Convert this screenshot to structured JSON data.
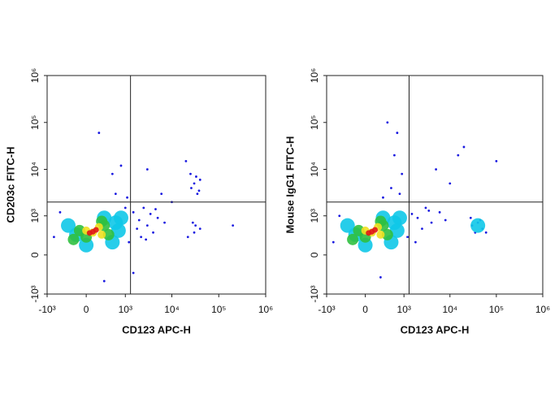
{
  "chart_data": [
    {
      "type": "scatter",
      "xlabel": "CD123 APC-H",
      "ylabel": "CD203c FITC-H",
      "xscale": "asinh",
      "yscale": "asinh",
      "xlim": [
        -1000,
        1000000
      ],
      "ylim": [
        -1000,
        1000000
      ],
      "xticks": [
        {
          "value": -1000,
          "label": "-10³"
        },
        0,
        {
          "value": 1000,
          "label": "10³"
        },
        {
          "value": 10000,
          "label": "10⁴"
        },
        {
          "value": 100000,
          "label": "10⁵"
        },
        {
          "value": 1000000,
          "label": "10⁶"
        }
      ],
      "yticks": [
        {
          "value": -1000,
          "label": "-10³"
        },
        0,
        {
          "value": 1000,
          "label": "10³"
        },
        {
          "value": 10000,
          "label": "10⁴"
        },
        {
          "value": 100000,
          "label": "10⁵"
        },
        {
          "value": 1000000,
          "label": "10⁶"
        }
      ],
      "gate": {
        "x": 1300,
        "y": 2000
      },
      "series": [
        {
          "color": "#1a1ae0",
          "x": [
            2000,
            3000,
            1500,
            5000,
            4000,
            2500,
            7000,
            1000,
            -500,
            -700,
            30000,
            25000,
            40000,
            35000,
            30000,
            40000,
            28000,
            20000,
            3000,
            200,
            500,
            800,
            600,
            6000,
            200000,
            10000,
            1200,
            300,
            1500,
            2200,
            3500,
            1800,
            26000,
            33000,
            38000,
            32000,
            22000,
            4500,
            1100,
            2800
          ],
          "y": [
            800,
            600,
            1200,
            900,
            400,
            1500,
            700,
            1500,
            1200,
            300,
            5000,
            8000,
            6000,
            3000,
            400,
            500,
            700,
            15000,
            10000,
            60000,
            8000,
            12000,
            3000,
            3000,
            600,
            2000,
            200,
            -500,
            -300,
            300,
            1100,
            500,
            4000,
            7000,
            3500,
            600,
            300,
            1400,
            2500,
            250
          ]
        },
        {
          "color": "#10c8e8",
          "x": [
            600,
            -300,
            500,
            800,
            0,
            300,
            -150,
            700
          ],
          "y": [
            700,
            600,
            200,
            900,
            150,
            900,
            350,
            450
          ]
        },
        {
          "color": "#30c040",
          "x": [
            0,
            300,
            -100,
            400,
            250,
            -200
          ],
          "y": [
            300,
            600,
            450,
            350,
            750,
            250
          ]
        },
        {
          "color": "#f0e020",
          "x": [
            100,
            200,
            0,
            250
          ],
          "y": [
            400,
            550,
            450,
            350
          ]
        },
        {
          "color": "#e01818",
          "x": [
            100,
            150,
            50
          ],
          "y": [
            420,
            470,
            390
          ]
        }
      ]
    },
    {
      "type": "scatter",
      "xlabel": "CD123 APC-H",
      "ylabel": "Mouse IgG1 FITC-H",
      "xscale": "asinh",
      "yscale": "asinh",
      "xlim": [
        -1000,
        1000000
      ],
      "ylim": [
        -1000,
        1000000
      ],
      "xticks": [
        {
          "value": -1000,
          "label": "-10³"
        },
        0,
        {
          "value": 1000,
          "label": "10³"
        },
        {
          "value": 10000,
          "label": "10⁴"
        },
        {
          "value": 100000,
          "label": "10⁵"
        },
        {
          "value": 1000000,
          "label": "10⁶"
        }
      ],
      "yticks": [
        {
          "value": -1000,
          "label": "-10³"
        },
        0,
        {
          "value": 1000,
          "label": "10³"
        },
        {
          "value": 10000,
          "label": "10⁴"
        },
        {
          "value": 100000,
          "label": "10⁵"
        },
        {
          "value": 1000000,
          "label": "10⁶"
        }
      ],
      "gate": {
        "x": 1300,
        "y": 2000
      },
      "series": [
        {
          "color": "#1a1ae0",
          "x": [
            500,
            600,
            400,
            700,
            800,
            3000,
            5000,
            20000,
            100000,
            2000,
            4000,
            1500,
            6000,
            8000,
            2500,
            30000,
            40000,
            50000,
            35000,
            45000,
            28000,
            1200,
            -500,
            -700,
            900,
            300,
            10000,
            3500,
            15000,
            60000,
            250,
            1800
          ],
          "y": [
            4000,
            20000,
            100000,
            60000,
            3000,
            1500,
            10000,
            30000,
            15000,
            900,
            700,
            1100,
            1200,
            800,
            500,
            600,
            700,
            500,
            400,
            800,
            900,
            300,
            1000,
            200,
            8000,
            2500,
            5000,
            1300,
            20000,
            400,
            -400,
            200
          ]
        },
        {
          "color": "#10c8e8",
          "x": [
            600,
            -300,
            500,
            800,
            0,
            300,
            -150,
            700,
            40000
          ],
          "y": [
            700,
            600,
            200,
            900,
            150,
            900,
            350,
            450,
            600
          ]
        },
        {
          "color": "#30c040",
          "x": [
            0,
            300,
            -100,
            400,
            250,
            -200
          ],
          "y": [
            300,
            600,
            450,
            350,
            750,
            250
          ]
        },
        {
          "color": "#f0e020",
          "x": [
            100,
            200,
            0,
            250
          ],
          "y": [
            400,
            550,
            450,
            350
          ]
        },
        {
          "color": "#e01818",
          "x": [
            100,
            150,
            50
          ],
          "y": [
            420,
            470,
            390
          ]
        }
      ]
    }
  ]
}
